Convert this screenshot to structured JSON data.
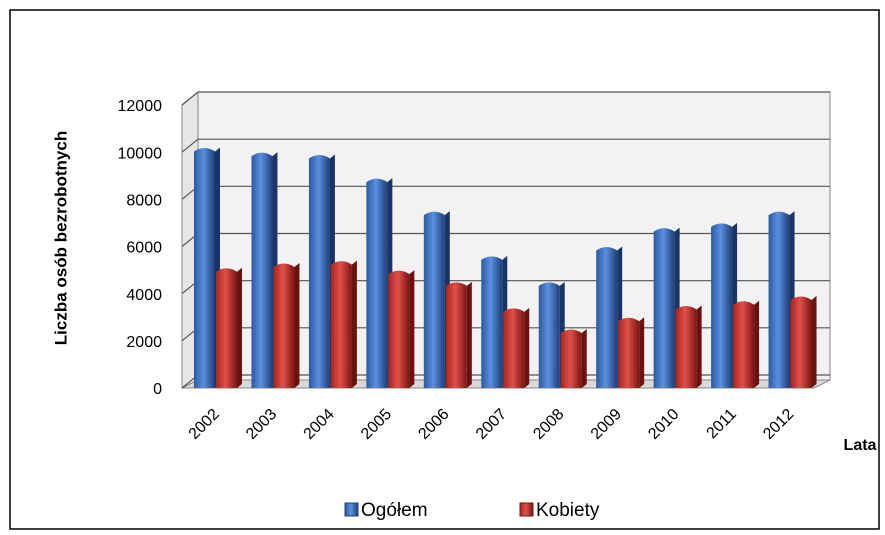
{
  "chart_data": {
    "type": "bar",
    "y_axis_label": "Liczba osób bezrobotnych",
    "x_axis_label": "Lata",
    "categories": [
      "2002",
      "2003",
      "2004",
      "2005",
      "2006",
      "2007",
      "2008",
      "2009",
      "2010",
      "2011",
      "2012"
    ],
    "series": [
      {
        "name": "Ogółem",
        "color": "#3c6fbf",
        "values": [
          10200,
          10000,
          9900,
          8900,
          7500,
          5600,
          4500,
          6000,
          6800,
          7000,
          7500
        ]
      },
      {
        "name": "Kobiety",
        "color": "#c8302c",
        "values": [
          5100,
          5300,
          5400,
          5000,
          4500,
          3400,
          2500,
          3000,
          3500,
          3700,
          3900
        ]
      }
    ],
    "ylim": [
      0,
      12000
    ],
    "yticks": [
      0,
      2000,
      4000,
      6000,
      8000,
      10000,
      12000
    ],
    "grid": true,
    "legend": "bottom"
  }
}
